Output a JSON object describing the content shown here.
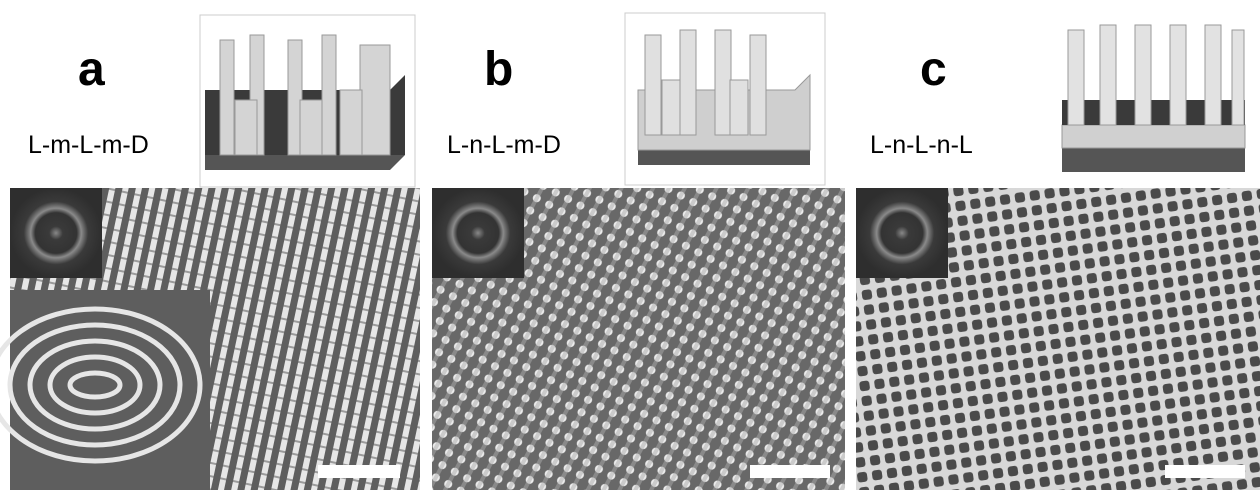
{
  "panels": [
    {
      "letter": "a",
      "label": "L-m-L-m-D"
    },
    {
      "letter": "b",
      "label": "L-n-L-m-D"
    },
    {
      "letter": "c",
      "label": "L-n-L-n-L"
    }
  ]
}
